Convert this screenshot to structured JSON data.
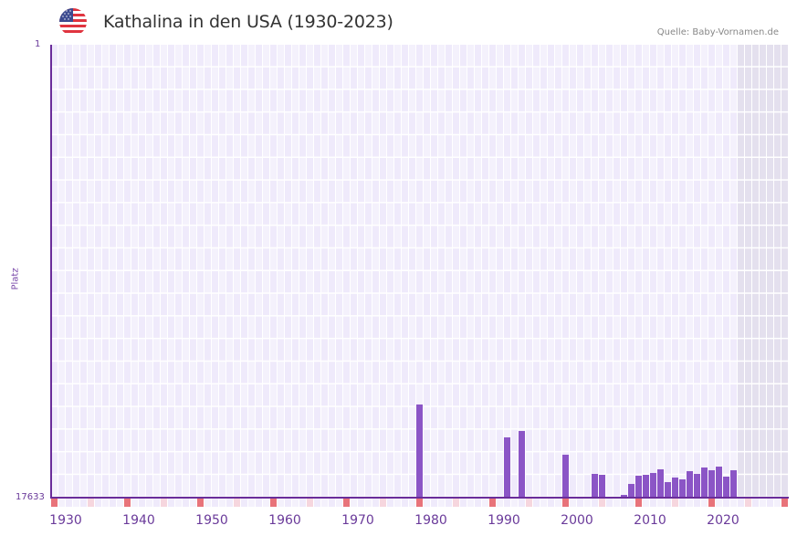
{
  "header": {
    "title": "Kathalina in den USA (1930-2023)",
    "source": "Quelle: Baby-Vornamen.de",
    "flag_icon": "usa-flag-icon"
  },
  "axis": {
    "y_title": "Platz",
    "y_top_label": "1",
    "y_bottom_label": "17633",
    "x_labels": [
      "1930",
      "1940",
      "1950",
      "1960",
      "1970",
      "1980",
      "1990",
      "2000",
      "2010",
      "2020"
    ]
  },
  "colors": {
    "bar": "#8b55c6",
    "axis": "#6a2d9a",
    "grid_bg_a": "#efeafb",
    "grid_bg_b": "#f4f1fc",
    "future_bg": "#e4e0ee",
    "decade_marker": "#e8737a",
    "half_decade_marker": "#f6d6de"
  },
  "chart_data": {
    "type": "bar",
    "title": "Kathalina in den USA (1930-2023)",
    "xlabel": "",
    "ylabel": "Platz",
    "ylim": [
      17633,
      1
    ],
    "y_inverted": true,
    "x_range": [
      1928,
      2028
    ],
    "x": [
      1978,
      1990,
      1992,
      1998,
      2002,
      2003,
      2006,
      2007,
      2008,
      2009,
      2010,
      2011,
      2012,
      2013,
      2014,
      2015,
      2016,
      2017,
      2018,
      2019,
      2020,
      2021
    ],
    "values": [
      14006,
      15286,
      15037,
      15962,
      16708,
      16744,
      17526,
      17099,
      16779,
      16744,
      16673,
      16530,
      17028,
      16850,
      16921,
      16601,
      16708,
      16459,
      16566,
      16424,
      16815,
      16566
    ],
    "annotations": [
      "Quelle: Baby-Vornamen.de"
    ],
    "grid": true,
    "shaded_future_from": 2022
  }
}
